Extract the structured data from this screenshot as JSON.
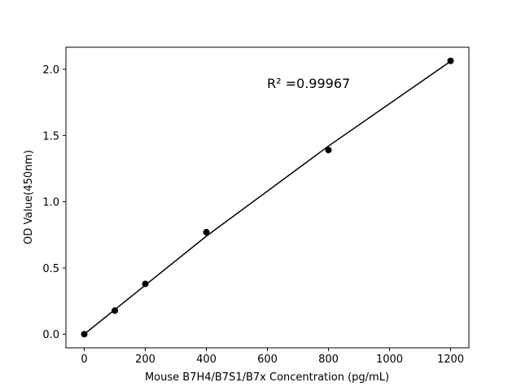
{
  "chart_data": {
    "type": "scatter",
    "x_label": "Mouse B7H4/B7S1/B7x Concentration (pg/mL)",
    "y_label": "OD Value(450nm)",
    "annotation": "R² =0.99967",
    "x": [
      0,
      100,
      200,
      400,
      800,
      1200
    ],
    "series": [
      {
        "color": "#000000",
        "mode": "markers",
        "values": [
          0.0,
          0.178,
          0.38,
          0.77,
          1.39,
          2.063
        ]
      },
      {
        "color": "#000000",
        "mode": "line",
        "values": [
          0.0,
          0.185,
          0.37,
          0.74,
          1.42,
          2.06
        ]
      }
    ],
    "xlim": [
      -60,
      1260
    ],
    "ylim": [
      -0.103,
      2.166
    ],
    "xticks": [
      0,
      200,
      400,
      600,
      800,
      1000,
      1200
    ],
    "yticks": [
      {
        "value": 0,
        "label": "0.0"
      },
      {
        "value": 0.5,
        "label": "0.5"
      },
      {
        "value": 1,
        "label": "1.0"
      },
      {
        "value": 1.5,
        "label": "1.5"
      },
      {
        "value": 2,
        "label": "2.0"
      }
    ],
    "grid": false
  }
}
